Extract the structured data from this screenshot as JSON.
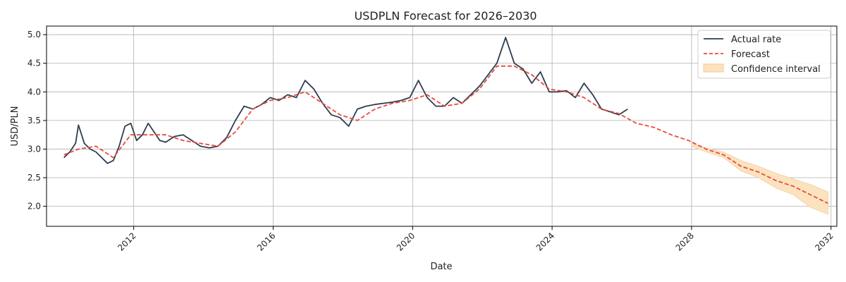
{
  "chart_data": {
    "type": "line",
    "title": "USDPLN Forecast for 2026–2030",
    "xlabel": "Date",
    "ylabel": "USD/PLN",
    "xlim": [
      "2009-07-01",
      "2032-03-01"
    ],
    "ylim": [
      1.65,
      5.15
    ],
    "x_ticks": [
      "2012",
      "2016",
      "2020",
      "2024",
      "2028",
      "2032"
    ],
    "y_ticks": [
      "2.0",
      "2.5",
      "3.0",
      "3.5",
      "4.0",
      "4.5",
      "5.0"
    ],
    "grid": true,
    "legend_position": "top-right",
    "colors": {
      "actual": "#2c3e50",
      "forecast": "#e74c3c",
      "band_fill": "#fbe3c0",
      "band_edge": "#f5c38e",
      "grid": "#b0b0b0",
      "axis": "#000000"
    },
    "series": [
      {
        "name": "Actual rate",
        "style": "solid",
        "x": [
          "2010-01",
          "2010-03",
          "2010-05",
          "2010-06",
          "2010-08",
          "2010-10",
          "2010-12",
          "2011-02",
          "2011-04",
          "2011-06",
          "2011-08",
          "2011-10",
          "2011-12",
          "2012-02",
          "2012-04",
          "2012-06",
          "2012-08",
          "2012-10",
          "2012-12",
          "2013-03",
          "2013-06",
          "2013-09",
          "2013-12",
          "2014-03",
          "2014-06",
          "2014-09",
          "2014-12",
          "2015-03",
          "2015-06",
          "2015-09",
          "2015-12",
          "2016-03",
          "2016-06",
          "2016-09",
          "2016-12",
          "2017-03",
          "2017-06",
          "2017-09",
          "2017-12",
          "2018-03",
          "2018-06",
          "2018-09",
          "2018-12",
          "2019-03",
          "2019-06",
          "2019-09",
          "2019-12",
          "2020-03",
          "2020-06",
          "2020-09",
          "2020-12",
          "2021-03",
          "2021-06",
          "2021-09",
          "2021-12",
          "2022-03",
          "2022-06",
          "2022-09",
          "2022-12",
          "2023-03",
          "2023-06",
          "2023-09",
          "2023-12",
          "2024-03",
          "2024-06",
          "2024-09",
          "2024-12",
          "2025-03",
          "2025-06",
          "2025-09",
          "2025-12",
          "2026-03"
        ],
        "values": [
          2.85,
          2.95,
          3.1,
          3.42,
          3.1,
          3.0,
          2.95,
          2.85,
          2.75,
          2.8,
          3.05,
          3.4,
          3.45,
          3.15,
          3.25,
          3.45,
          3.3,
          3.15,
          3.12,
          3.22,
          3.25,
          3.15,
          3.05,
          3.02,
          3.05,
          3.2,
          3.5,
          3.75,
          3.7,
          3.78,
          3.9,
          3.85,
          3.95,
          3.9,
          4.2,
          4.05,
          3.8,
          3.6,
          3.55,
          3.4,
          3.7,
          3.75,
          3.78,
          3.8,
          3.82,
          3.85,
          3.9,
          4.2,
          3.9,
          3.75,
          3.75,
          3.9,
          3.8,
          3.95,
          4.1,
          4.3,
          4.5,
          4.95,
          4.5,
          4.4,
          4.15,
          4.35,
          4.0,
          4.0,
          4.02,
          3.9,
          4.15,
          3.95,
          3.7,
          3.65,
          3.6,
          3.7
        ]
      },
      {
        "name": "Forecast",
        "style": "dashed",
        "x": [
          "2010-01",
          "2010-06",
          "2010-12",
          "2011-06",
          "2011-12",
          "2012-06",
          "2012-12",
          "2013-06",
          "2013-12",
          "2014-06",
          "2014-12",
          "2015-06",
          "2015-12",
          "2016-06",
          "2016-12",
          "2017-06",
          "2017-12",
          "2018-06",
          "2018-12",
          "2019-06",
          "2019-12",
          "2020-06",
          "2020-12",
          "2021-06",
          "2021-12",
          "2022-06",
          "2022-12",
          "2023-06",
          "2023-12",
          "2024-06",
          "2024-12",
          "2025-06",
          "2025-12",
          "2026-06",
          "2026-12",
          "2027-06",
          "2027-12",
          "2028-06",
          "2028-12",
          "2029-06",
          "2029-12",
          "2030-06",
          "2030-12",
          "2031-06",
          "2031-12"
        ],
        "values": [
          2.9,
          3.0,
          3.05,
          2.85,
          3.25,
          3.25,
          3.25,
          3.15,
          3.1,
          3.05,
          3.3,
          3.7,
          3.85,
          3.9,
          4.0,
          3.8,
          3.6,
          3.5,
          3.7,
          3.8,
          3.85,
          3.95,
          3.75,
          3.8,
          4.05,
          4.45,
          4.45,
          4.3,
          4.05,
          4.0,
          3.9,
          3.7,
          3.62,
          3.45,
          3.38,
          3.25,
          3.15,
          3.0,
          2.9,
          2.7,
          2.6,
          2.45,
          2.35,
          2.2,
          2.05
        ]
      }
    ],
    "confidence_interval": {
      "name": "Confidence interval",
      "x": [
        "2028-01",
        "2028-06",
        "2028-12",
        "2029-06",
        "2029-12",
        "2030-06",
        "2030-12",
        "2031-06",
        "2031-12"
      ],
      "lower": [
        3.05,
        2.95,
        2.85,
        2.62,
        2.5,
        2.32,
        2.2,
        1.98,
        1.86
      ],
      "upper": [
        3.1,
        3.02,
        2.95,
        2.8,
        2.7,
        2.58,
        2.48,
        2.38,
        2.25
      ]
    }
  }
}
